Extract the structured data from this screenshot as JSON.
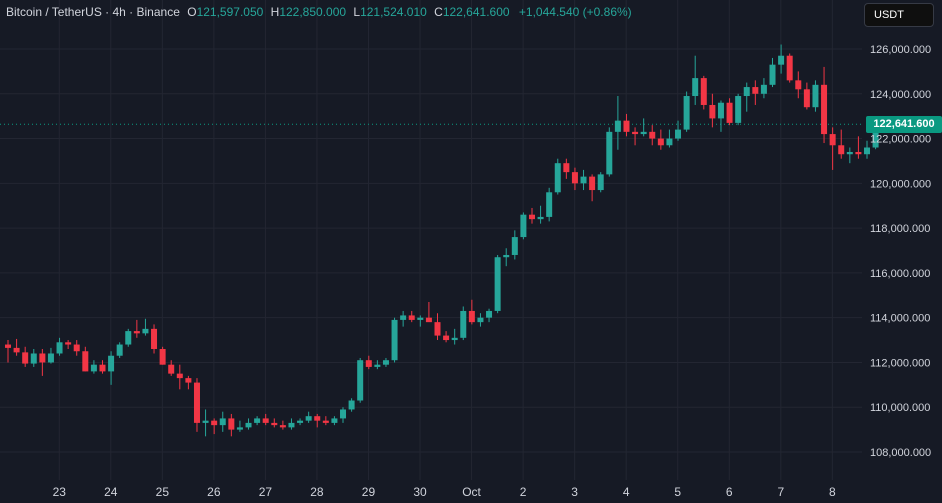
{
  "legend": {
    "symbol": "Bitcoin / TetherUS · 4h · Binance",
    "open_label": "O",
    "open": "121,597.050",
    "high_label": "H",
    "high": "122,850.000",
    "low_label": "L",
    "low": "121,524.010",
    "close_label": "C",
    "close": "122,641.600",
    "change": "+1,044.540 (+0.86%)"
  },
  "currency": "USDT",
  "last_price": "122,641.600",
  "colors": {
    "up": "#26a69a",
    "down": "#f23645",
    "background": "#161a25",
    "grid": "#232632",
    "badge": "#0a9981"
  },
  "chart_data": {
    "type": "candlestick",
    "y_ticks": [
      "108,000.000",
      "110,000.000",
      "112,000.000",
      "114,000.000",
      "116,000.000",
      "118,000.000",
      "120,000.000",
      "122,000.000",
      "124,000.000",
      "126,000.000"
    ],
    "y_tick_values": [
      108000,
      110000,
      112000,
      114000,
      116000,
      118000,
      120000,
      122000,
      124000,
      126000
    ],
    "ylim": [
      106900,
      127000
    ],
    "x_labels": [
      "23",
      "24",
      "25",
      "26",
      "27",
      "28",
      "29",
      "30",
      "Oct",
      "2",
      "3",
      "4",
      "5",
      "6",
      "7",
      "8"
    ],
    "x_label_index": [
      6,
      12,
      18,
      24,
      30,
      36,
      42,
      48,
      54,
      60,
      66,
      72,
      78,
      84,
      90,
      96
    ],
    "last_price": 122641.6,
    "candles": [
      [
        112800,
        113000,
        112000,
        112650
      ],
      [
        112650,
        113050,
        112300,
        112450
      ],
      [
        112450,
        112700,
        111800,
        111950
      ],
      [
        111950,
        112600,
        111800,
        112400
      ],
      [
        112400,
        112600,
        111400,
        112000
      ],
      [
        112000,
        112650,
        111950,
        112400
      ],
      [
        112400,
        113100,
        112300,
        112900
      ],
      [
        112900,
        113000,
        112600,
        112800
      ],
      [
        112800,
        113000,
        112300,
        112500
      ],
      [
        112500,
        112700,
        111600,
        111600
      ],
      [
        111600,
        112100,
        111500,
        111900
      ],
      [
        111900,
        112100,
        111500,
        111600
      ],
      [
        111600,
        112500,
        111000,
        112300
      ],
      [
        112300,
        112900,
        112200,
        112800
      ],
      [
        112800,
        113500,
        112700,
        113400
      ],
      [
        113400,
        113900,
        113100,
        113300
      ],
      [
        113300,
        113950,
        113200,
        113500
      ],
      [
        113500,
        113700,
        112400,
        112600
      ],
      [
        112600,
        112700,
        111900,
        111900
      ],
      [
        111900,
        112100,
        111400,
        111500
      ],
      [
        111500,
        111900,
        110800,
        111300
      ],
      [
        111300,
        111400,
        110800,
        111100
      ],
      [
        111100,
        111300,
        108900,
        109300
      ],
      [
        109300,
        109900,
        108700,
        109400
      ],
      [
        109400,
        109500,
        108800,
        109200
      ],
      [
        109200,
        109800,
        108900,
        109500
      ],
      [
        109500,
        109700,
        108700,
        109000
      ],
      [
        109000,
        109400,
        108900,
        109100
      ],
      [
        109100,
        109500,
        109000,
        109300
      ],
      [
        109300,
        109600,
        109200,
        109500
      ],
      [
        109500,
        109700,
        109200,
        109300
      ],
      [
        109300,
        109500,
        109100,
        109200
      ],
      [
        109200,
        109400,
        109000,
        109100
      ],
      [
        109100,
        109500,
        109000,
        109300
      ],
      [
        109300,
        109500,
        109200,
        109400
      ],
      [
        109400,
        109800,
        109300,
        109600
      ],
      [
        109600,
        109700,
        109100,
        109400
      ],
      [
        109400,
        109600,
        109200,
        109300
      ],
      [
        109300,
        109600,
        109200,
        109500
      ],
      [
        109500,
        110000,
        109300,
        109900
      ],
      [
        109900,
        110400,
        109800,
        110300
      ],
      [
        110300,
        112200,
        110200,
        112100
      ],
      [
        112100,
        112300,
        111700,
        111800
      ],
      [
        111800,
        112100,
        111700,
        111900
      ],
      [
        111900,
        112200,
        111800,
        112100
      ],
      [
        112100,
        114000,
        112000,
        113900
      ],
      [
        113900,
        114300,
        113600,
        114100
      ],
      [
        114100,
        114300,
        113800,
        113900
      ],
      [
        113900,
        114100,
        113600,
        114000
      ],
      [
        114000,
        114700,
        113900,
        113800
      ],
      [
        113800,
        114200,
        113000,
        113200
      ],
      [
        113200,
        113400,
        112900,
        113000
      ],
      [
        113000,
        113500,
        112800,
        113100
      ],
      [
        113100,
        114500,
        113000,
        114300
      ],
      [
        114300,
        114800,
        113700,
        113800
      ],
      [
        113800,
        114200,
        113600,
        114000
      ],
      [
        114000,
        114400,
        113800,
        114300
      ],
      [
        114300,
        116800,
        114200,
        116700
      ],
      [
        116700,
        117100,
        116300,
        116800
      ],
      [
        116800,
        117900,
        116600,
        117600
      ],
      [
        117600,
        118700,
        117500,
        118600
      ],
      [
        118600,
        118900,
        118200,
        118400
      ],
      [
        118400,
        119000,
        118200,
        118500
      ],
      [
        118500,
        119800,
        118300,
        119600
      ],
      [
        119600,
        121100,
        119500,
        120900
      ],
      [
        120900,
        121100,
        120200,
        120500
      ],
      [
        120500,
        120700,
        119700,
        120000
      ],
      [
        120000,
        120600,
        119700,
        120300
      ],
      [
        120300,
        120400,
        119200,
        119700
      ],
      [
        119700,
        120500,
        119600,
        120400
      ],
      [
        120400,
        122500,
        120300,
        122300
      ],
      [
        122300,
        123900,
        121500,
        122800
      ],
      [
        122800,
        123100,
        122100,
        122300
      ],
      [
        122300,
        122500,
        121700,
        122200
      ],
      [
        122200,
        122900,
        122100,
        122300
      ],
      [
        122300,
        122600,
        121700,
        122000
      ],
      [
        122000,
        122400,
        121500,
        121700
      ],
      [
        121700,
        122400,
        121600,
        122000
      ],
      [
        122000,
        122800,
        121900,
        122400
      ],
      [
        122400,
        124100,
        122300,
        123900
      ],
      [
        123900,
        125700,
        123500,
        124700
      ],
      [
        124700,
        124800,
        123300,
        123500
      ],
      [
        123500,
        124000,
        122500,
        122900
      ],
      [
        122900,
        123700,
        122300,
        123600
      ],
      [
        123600,
        123800,
        122600,
        122700
      ],
      [
        122700,
        124000,
        122600,
        123900
      ],
      [
        123900,
        124500,
        123200,
        124300
      ],
      [
        124300,
        124600,
        123500,
        124000
      ],
      [
        124000,
        124700,
        123800,
        124400
      ],
      [
        124400,
        125600,
        124300,
        125300
      ],
      [
        125300,
        126200,
        124900,
        125700
      ],
      [
        125700,
        125800,
        124500,
        124600
      ],
      [
        124600,
        125000,
        123800,
        124200
      ],
      [
        124200,
        124500,
        123300,
        123400
      ],
      [
        123400,
        124600,
        123200,
        124400
      ],
      [
        124400,
        125200,
        121800,
        122200
      ],
      [
        122200,
        122500,
        120600,
        121700
      ],
      [
        121700,
        122400,
        121100,
        121300
      ],
      [
        121300,
        121600,
        120900,
        121400
      ],
      [
        121400,
        122100,
        121100,
        121300
      ],
      [
        121300,
        121900,
        121100,
        121600
      ],
      [
        121600,
        122850,
        121524,
        122641.6
      ]
    ]
  }
}
